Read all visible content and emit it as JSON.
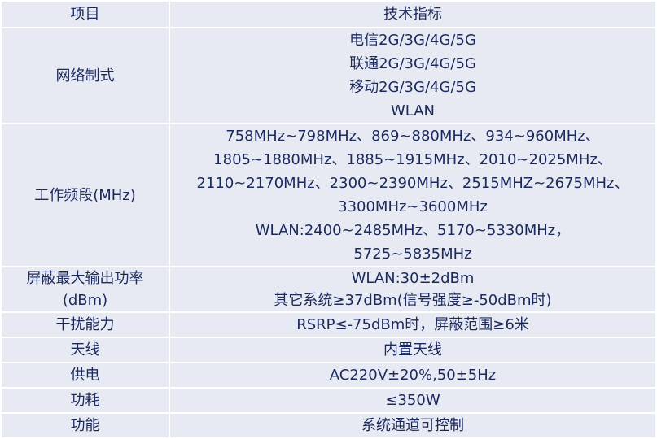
{
  "header": {
    "item": "项目",
    "spec": "技术指标"
  },
  "rows": [
    {
      "label": "网络制式",
      "lines": [
        "电信2G/3G/4G/5G",
        "联通2G/3G/4G/5G",
        "移动2G/3G/4G/5G",
        "WLAN"
      ]
    },
    {
      "label": "工作频段(MHz)",
      "lines": [
        "758MHz~798MHz、869~880MHz、934~960MHz、",
        "1805~1880MHz、1885~1915MHz、2010~2025MHz、",
        "2110~2170MHz、2300~2390MHz、2515MHZ~2675MHz、",
        "3300MHz~3600MHz",
        "WLAN:2400~2485MHz、5170~5330MHz，",
        "5725~5835MHz"
      ]
    },
    {
      "label_lines": [
        "屏蔽最大输出功率",
        "(dBm)"
      ],
      "lines": [
        "WLAN:30±2dBm",
        "其它系统≥37dBm(信号强度≥-50dBm时)"
      ]
    },
    {
      "label": "干扰能力",
      "lines": [
        "RSRP≤-75dBm时，屏蔽范围≥6米"
      ]
    },
    {
      "label": "天线",
      "lines": [
        "内置天线"
      ]
    },
    {
      "label": "供电",
      "lines": [
        "AC220V±20%,50±5Hz"
      ]
    },
    {
      "label": "功耗",
      "lines": [
        "≤350W"
      ]
    },
    {
      "label": "功能",
      "lines": [
        "系统通道可控制"
      ]
    }
  ]
}
